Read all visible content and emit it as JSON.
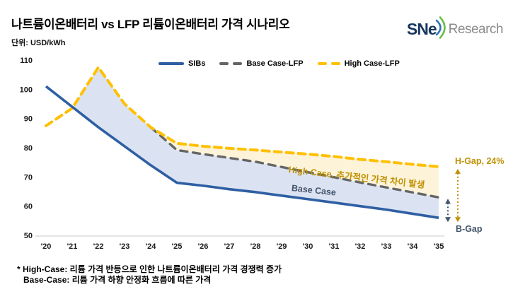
{
  "title": "나트륨이온배터리 vs LFP 리튬이온배터리 가격 시나리오",
  "unit_label": "단위: USD/kWh",
  "logo": {
    "text": "SNe",
    "suffix": "Research"
  },
  "legend": [
    {
      "label": "SIBs",
      "color": "#2e5fa3",
      "style": "solid"
    },
    {
      "label": "Base Case-LFP",
      "color": "#666666",
      "style": "dashed"
    },
    {
      "label": "High Case-LFP",
      "color": "#ffc000",
      "style": "dashed"
    }
  ],
  "chart_data": {
    "type": "line",
    "title": "나트륨이온배터리 vs LFP 리튬이온배터리 가격 시나리오",
    "ylabel": "USD/kWh",
    "x_labels": [
      "'20",
      "'21",
      "'22",
      "'23",
      "'24",
      "'25",
      "'26",
      "'27",
      "'28",
      "'29",
      "'30",
      "'31",
      "'32",
      "'33",
      "'34",
      "'35"
    ],
    "ylim": [
      50,
      110
    ],
    "yticks": [
      50,
      60,
      70,
      80,
      90,
      100,
      110
    ],
    "grid": false,
    "legend_position": "top",
    "series": [
      {
        "name": "SIBs",
        "color": "#2e5fa3",
        "dash": "solid",
        "values": [
          101,
          94,
          87,
          80.5,
          74,
          68,
          67,
          65.8,
          64.8,
          63.6,
          62.4,
          61.2,
          60,
          58.8,
          57.4,
          56
        ]
      },
      {
        "name": "Base Case-LFP",
        "color": "#666666",
        "dash": "dashed",
        "values": [
          null,
          null,
          null,
          null,
          87,
          79.2,
          77.8,
          76.5,
          75.2,
          73.4,
          71.6,
          69.9,
          68.1,
          66.4,
          64.7,
          63
        ]
      },
      {
        "name": "High Case-LFP",
        "color": "#ffc000",
        "dash": "dashed",
        "values": [
          87.5,
          93.5,
          107.5,
          95,
          87,
          81.5,
          80.5,
          79.8,
          79.2,
          78.5,
          77.8,
          77,
          76,
          75.2,
          74.3,
          73.5
        ]
      }
    ],
    "fill_colors": {
      "sib_gap": "#dbe3f3",
      "case_gap": "#fdf3d9"
    },
    "gap_markers": {
      "h_gap": {
        "label": "H-Gap, 24%",
        "color": "#bf9000"
      },
      "b_gap": {
        "label": "B-Gap",
        "color": "#44546a"
      }
    }
  },
  "annotations": {
    "high_case": {
      "text": "High Case, 추가적인 가격 차이 발생",
      "color": "#bf9000"
    },
    "base_case": {
      "text": "Base Case",
      "color": "#44546a"
    }
  },
  "footnotes": {
    "line1": "* High-Case: 리튬 가격 반등으로 인한 나트륨이온배터리 가격 경쟁력 증가",
    "line2": "Base-Case: 리튬 가격 하향 안정화 흐름에 따른 가격"
  }
}
